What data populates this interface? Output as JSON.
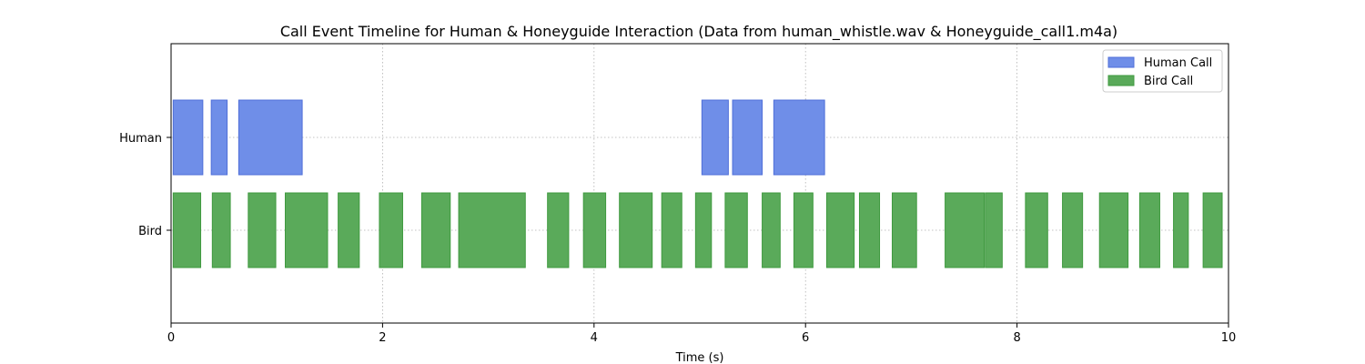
{
  "chart_data": {
    "type": "timeline",
    "title": "Call Event Timeline for Human & Honeyguide Interaction (Data from human_whistle.wav & Honeyguide_call1.m4a)",
    "xlabel": "Time (s)",
    "ylabel": "",
    "xlim": [
      0,
      10
    ],
    "x_ticks": [
      0,
      2,
      4,
      6,
      8,
      10
    ],
    "x_tick_labels": [
      "0",
      "2",
      "4",
      "6",
      "8",
      "10"
    ],
    "y_categories": [
      "Human",
      "Bird"
    ],
    "grid": true,
    "legend_position": "top-right",
    "series": [
      {
        "name": "Human Call",
        "row": "Human",
        "color": "#6f8ee8",
        "edge_color": "#4f6fd8",
        "intervals": [
          [
            0.02,
            0.3
          ],
          [
            0.38,
            0.53
          ],
          [
            0.64,
            1.24
          ],
          [
            5.02,
            5.27
          ],
          [
            5.31,
            5.59
          ],
          [
            5.7,
            6.18
          ]
        ]
      },
      {
        "name": "Bird Call",
        "row": "Bird",
        "color": "#5aaa5a",
        "edge_color": "#3f9a3f",
        "intervals": [
          [
            0.02,
            0.28
          ],
          [
            0.39,
            0.56
          ],
          [
            0.73,
            0.99
          ],
          [
            1.08,
            1.48
          ],
          [
            1.58,
            1.78
          ],
          [
            1.97,
            2.19
          ],
          [
            2.37,
            2.64
          ],
          [
            2.72,
            3.35
          ],
          [
            3.56,
            3.76
          ],
          [
            3.9,
            4.11
          ],
          [
            4.24,
            4.55
          ],
          [
            4.64,
            4.83
          ],
          [
            4.96,
            5.11
          ],
          [
            5.24,
            5.45
          ],
          [
            5.59,
            5.76
          ],
          [
            5.89,
            6.07
          ],
          [
            6.2,
            6.46
          ],
          [
            6.51,
            6.7
          ],
          [
            6.82,
            7.05
          ],
          [
            7.32,
            7.69
          ],
          [
            7.7,
            7.86
          ],
          [
            8.08,
            8.29
          ],
          [
            8.43,
            8.62
          ],
          [
            8.78,
            9.05
          ],
          [
            9.16,
            9.35
          ],
          [
            9.48,
            9.62
          ],
          [
            9.76,
            9.94
          ]
        ]
      }
    ]
  }
}
